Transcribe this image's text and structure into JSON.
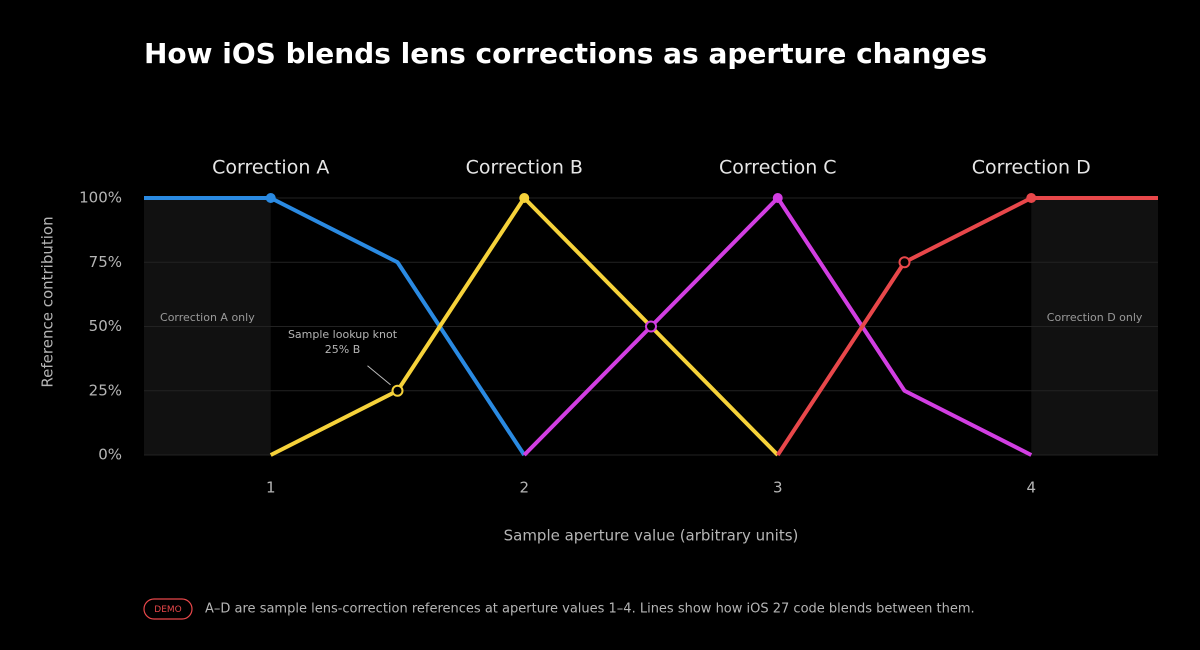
{
  "chart_data": {
    "type": "line",
    "title": "How iOS blends lens corrections as aperture changes",
    "x_label": "Sample aperture value (arbitrary units)",
    "y_label": "Reference contribution",
    "x": [
      0.5,
      1,
      1.5,
      2,
      2.5,
      3,
      3.5,
      4,
      4.5
    ],
    "xlim": [
      0.5,
      4.5
    ],
    "xticks": [
      1,
      2,
      3,
      4
    ],
    "ylim": [
      0,
      100
    ],
    "yticks": [
      {
        "value": 0,
        "label": "0%"
      },
      {
        "value": 25,
        "label": "25%"
      },
      {
        "value": 50,
        "label": "50%"
      },
      {
        "value": 75,
        "label": "75%"
      },
      {
        "value": 100,
        "label": "100%"
      }
    ],
    "grid": true,
    "series": [
      {
        "name": "Correction A",
        "color": "#2a8ae2",
        "values": [
          100,
          100,
          75,
          0,
          null,
          null,
          null,
          null,
          null
        ],
        "markers": [
          "none",
          "filled",
          "none",
          "none",
          "none",
          "none",
          "none",
          "none",
          "none"
        ]
      },
      {
        "name": "Correction B",
        "color": "#f6d23a",
        "values": [
          null,
          0,
          25,
          100,
          50,
          0,
          null,
          null,
          null
        ],
        "markers": [
          "none",
          "none",
          "hollow",
          "filled",
          "none",
          "none",
          "none",
          "none",
          "none"
        ]
      },
      {
        "name": "Correction C",
        "color": "#d23ee2",
        "values": [
          null,
          null,
          null,
          0,
          50,
          100,
          25,
          0,
          null
        ],
        "markers": [
          "none",
          "none",
          "none",
          "none",
          "hollow",
          "filled",
          "none",
          "none",
          "none"
        ]
      },
      {
        "name": "Correction D",
        "color": "#e8474a",
        "values": [
          null,
          null,
          null,
          null,
          null,
          0,
          75,
          100,
          100
        ],
        "markers": [
          "none",
          "none",
          "none",
          "none",
          "none",
          "none",
          "hollow",
          "filled",
          "none"
        ]
      }
    ],
    "regions": [
      {
        "from": 0.5,
        "to": 1,
        "label": "Correction A only"
      },
      {
        "from": 4,
        "to": 4.5,
        "label": "Correction D only"
      }
    ],
    "annotation": {
      "lines": [
        "Sample lookup knot",
        "25% B"
      ],
      "x": 1.5,
      "y": 25
    },
    "footnote": {
      "badge": "DEMO",
      "text": "A–D are sample lens-correction references at aperture values 1–4. Lines show how iOS 27 code blends between them."
    }
  }
}
